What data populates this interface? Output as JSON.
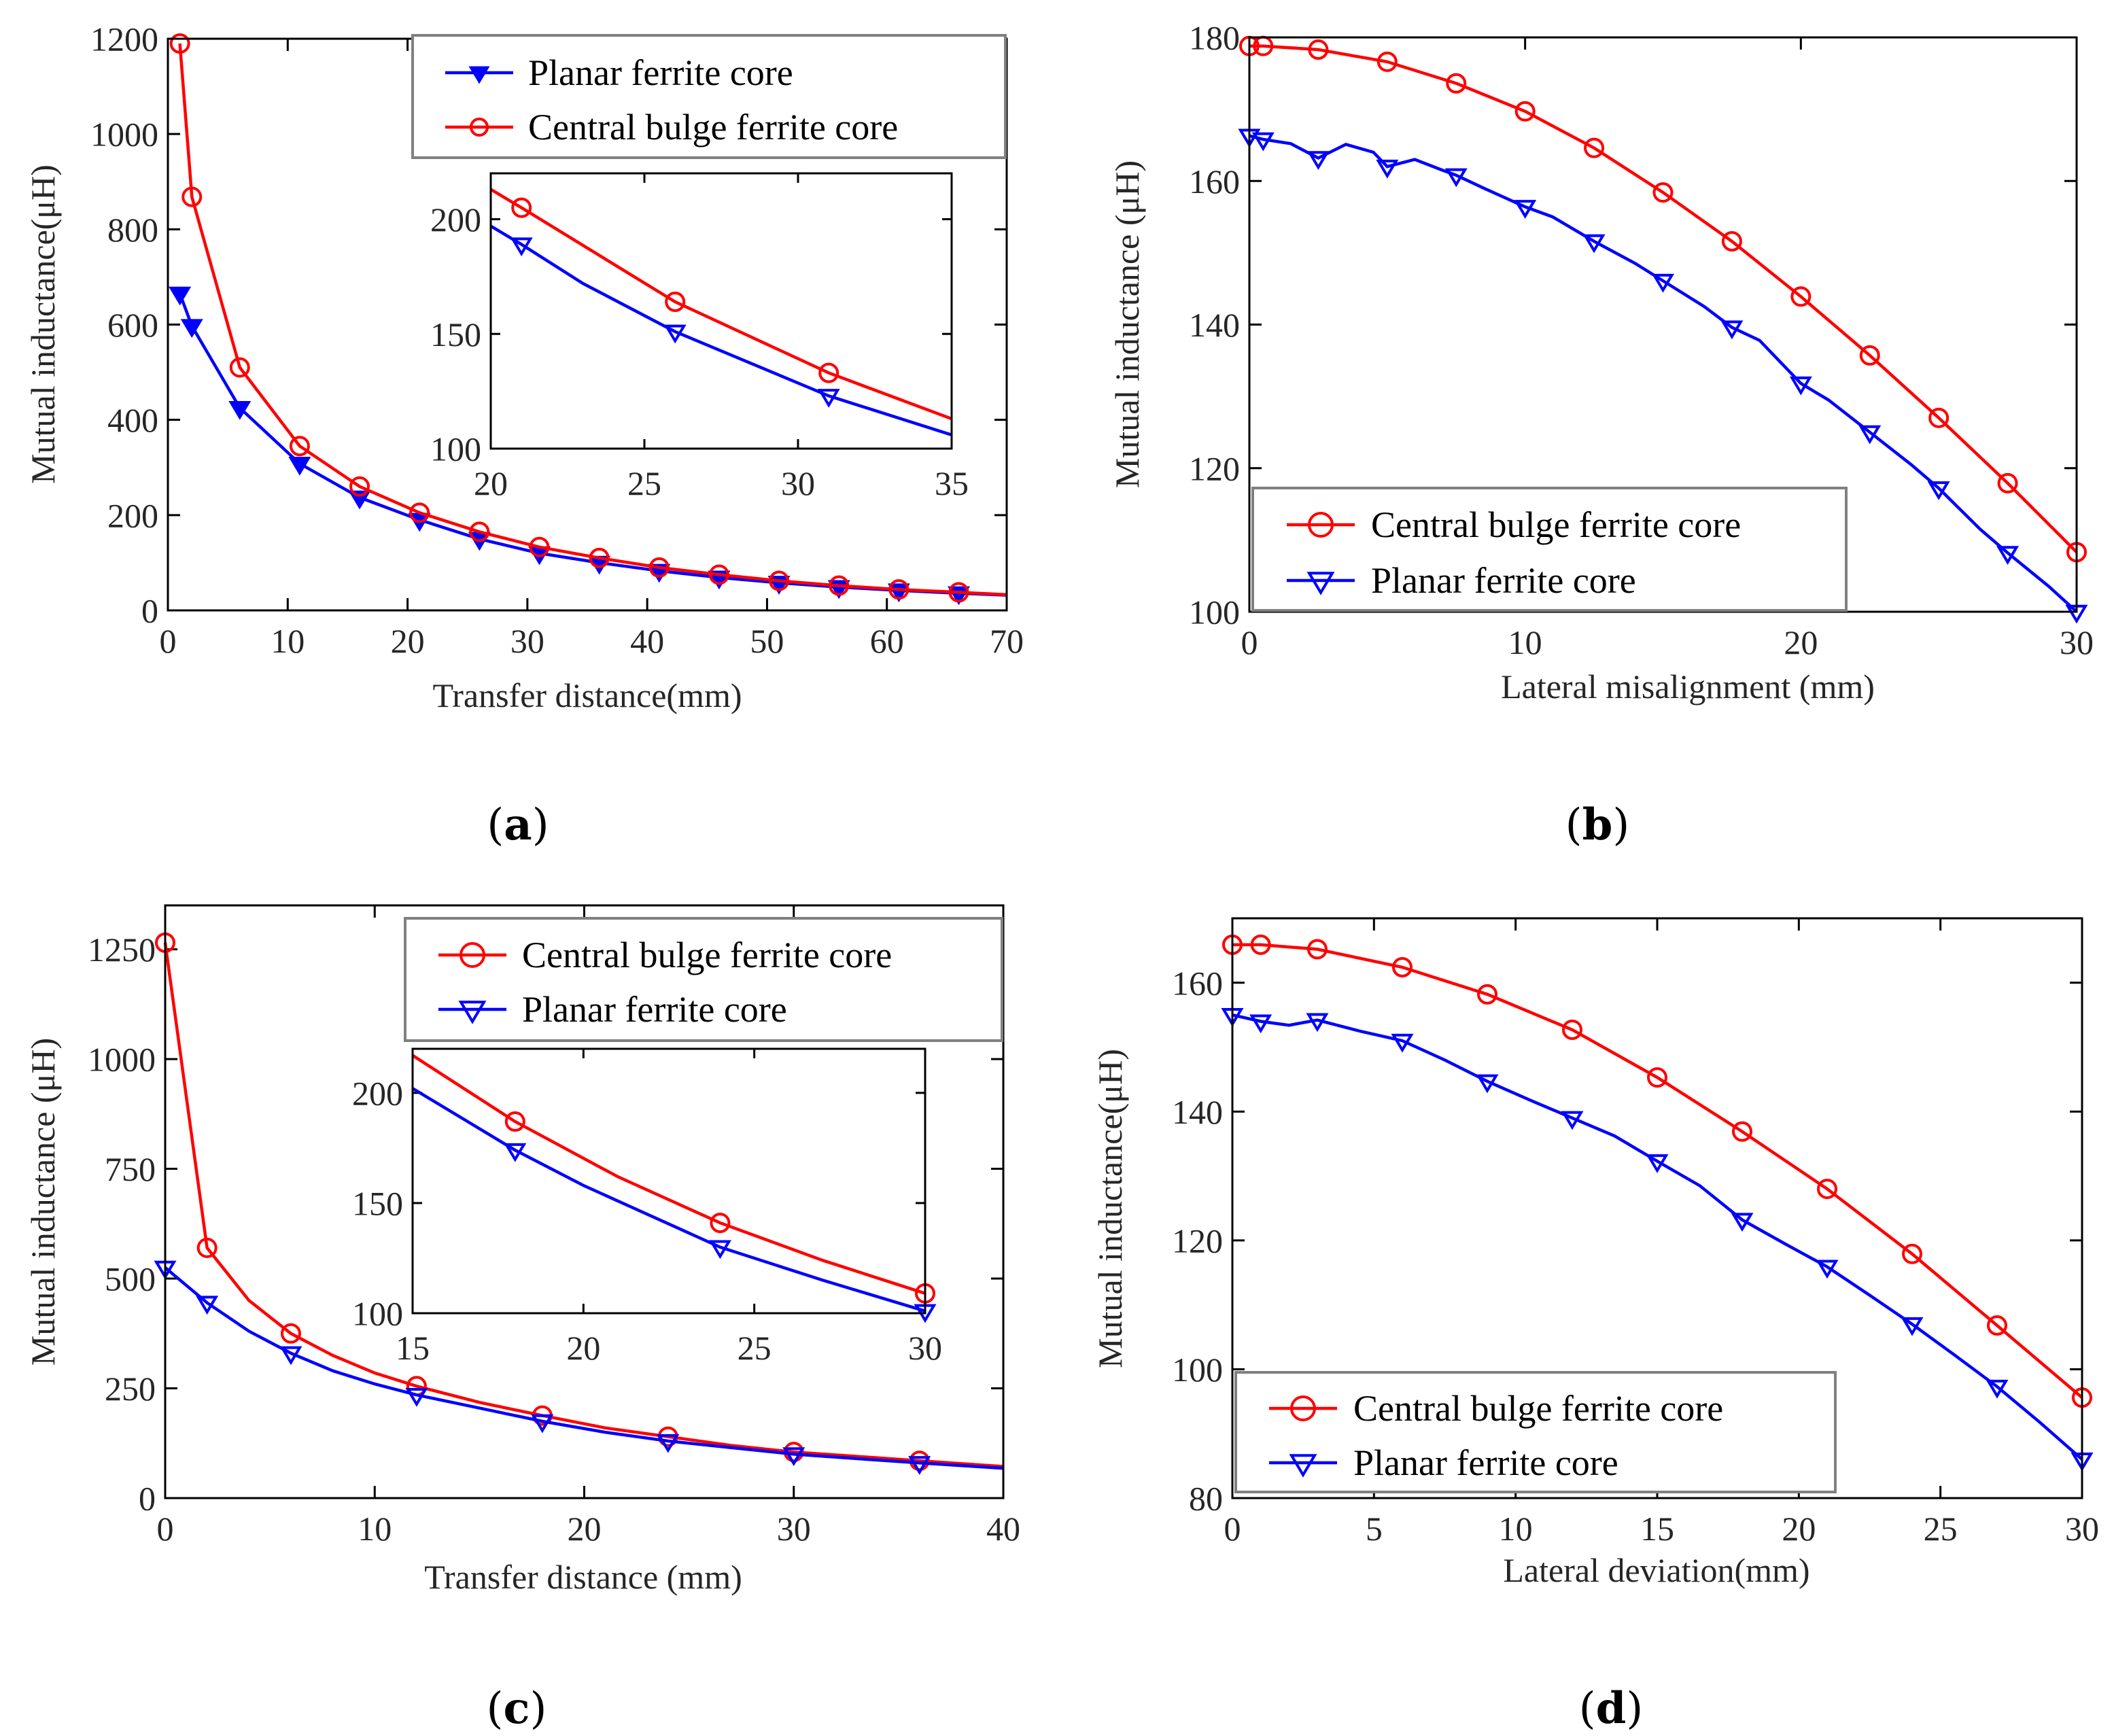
{
  "colors": {
    "red": "#ff0000",
    "blue": "#0000ff"
  },
  "chart_data": [
    {
      "id": "a",
      "type": "line",
      "caption_letter": "a",
      "xlabel": "Transfer distance(mm)",
      "ylabel": "Mutual inductance(μH)",
      "xlim": [
        0,
        70
      ],
      "ylim": [
        0,
        1200
      ],
      "xticks": [
        0,
        10,
        20,
        30,
        40,
        50,
        60,
        70
      ],
      "yticks": [
        0,
        200,
        400,
        600,
        800,
        1000,
        1200
      ],
      "legend_position": "top-right",
      "legend": [
        "Planar ferrite core",
        "Central bulge ferrite core"
      ],
      "series": [
        {
          "name": "Planar ferrite core",
          "color": "blue",
          "marker": "triangle-down-filled",
          "x": [
            1,
            2,
            6,
            11,
            16,
            21,
            26,
            31,
            36,
            41,
            46,
            51,
            56,
            61,
            66,
            70
          ],
          "y": [
            665,
            597,
            425,
            308,
            237,
            190,
            150,
            120,
            100,
            83,
            69,
            58,
            49,
            42,
            36,
            32
          ],
          "marker_x": [
            1,
            2,
            6,
            11,
            16,
            21,
            26,
            31,
            36,
            41,
            46,
            51,
            56,
            61,
            66
          ]
        },
        {
          "name": "Central bulge ferrite core",
          "color": "red",
          "marker": "circle",
          "x": [
            1,
            2,
            6,
            11,
            16,
            21,
            26,
            31,
            36,
            41,
            46,
            51,
            56,
            61,
            66,
            70
          ],
          "y": [
            1190,
            868,
            510,
            345,
            260,
            205,
            165,
            133,
            110,
            90,
            75,
            62,
            52,
            44,
            38,
            33
          ],
          "marker_x": [
            1,
            2,
            6,
            11,
            16,
            21,
            26,
            31,
            36,
            41,
            46,
            51,
            56,
            61,
            66
          ]
        }
      ],
      "inset": {
        "xlim": [
          20,
          35
        ],
        "ylim": [
          100,
          220
        ],
        "xticks": [
          20,
          25,
          30,
          35
        ],
        "yticks": [
          100,
          150,
          200
        ],
        "series": [
          {
            "name": "Central bulge ferrite core",
            "color": "red",
            "marker": "circle",
            "x": [
              20,
              21,
              26,
              31,
              35
            ],
            "y": [
              213,
              205,
              164,
              133,
              113
            ],
            "marker_x": [
              21,
              26,
              31
            ]
          },
          {
            "name": "Planar ferrite core",
            "color": "blue",
            "marker": "triangle-down",
            "x": [
              20,
              21,
              23,
              26,
              31,
              35
            ],
            "y": [
              197,
              189,
              172,
              151,
              123,
              106
            ],
            "marker_x": [
              21,
              26,
              31
            ]
          }
        ]
      }
    },
    {
      "id": "b",
      "type": "line",
      "caption_letter": "b",
      "xlabel": "Lateral misalignment (mm)",
      "ylabel": "Mutual inductance (μH)",
      "xlim": [
        0,
        30
      ],
      "ylim": [
        100,
        180
      ],
      "xticks": [
        0,
        10,
        20,
        30
      ],
      "yticks": [
        100,
        120,
        140,
        160,
        180
      ],
      "legend_position": "bottom-left",
      "legend": [
        "Central bulge ferrite core",
        "Planar ferrite core"
      ],
      "series": [
        {
          "name": "Central bulge ferrite core",
          "color": "red",
          "marker": "circle",
          "x": [
            0,
            0.5,
            2.5,
            5,
            7.5,
            10,
            12.5,
            15,
            17.5,
            20,
            22.5,
            25,
            27.5,
            30
          ],
          "y": [
            178.8,
            178.8,
            178.3,
            176.6,
            173.6,
            169.7,
            164.6,
            158.4,
            151.6,
            143.9,
            135.7,
            127.0,
            117.9,
            108.3
          ],
          "marker_x": [
            0,
            0.5,
            2.5,
            5,
            7.5,
            10,
            12.5,
            15,
            17.5,
            20,
            22.5,
            25,
            27.5,
            30
          ]
        },
        {
          "name": "Planar ferrite core",
          "color": "blue",
          "marker": "triangle-down",
          "x": [
            0,
            0.5,
            1.5,
            2.5,
            3.5,
            4.5,
            5,
            6,
            7,
            7.5,
            8.5,
            10,
            11,
            12.5,
            14,
            15,
            16.5,
            17.5,
            18.5,
            20,
            21,
            22.5,
            24,
            25,
            26.5,
            27.5,
            29,
            30
          ],
          "y": [
            166.3,
            165.8,
            165.2,
            163.2,
            165.1,
            164.0,
            162.0,
            163.0,
            161.5,
            160.8,
            159.0,
            156.4,
            155.0,
            151.6,
            148.5,
            146.1,
            142.5,
            139.6,
            137.8,
            131.8,
            129.5,
            125.0,
            120.5,
            117.2,
            111.5,
            108.2,
            103.5,
            100.0
          ],
          "marker_x": [
            0,
            0.5,
            2.5,
            5,
            7.5,
            10,
            12.5,
            15,
            17.5,
            20,
            22.5,
            25,
            27.5,
            30
          ]
        }
      ]
    },
    {
      "id": "c",
      "type": "line",
      "caption_letter": "c",
      "xlabel": "Transfer distance (mm)",
      "ylabel": "Mutual inductance (μH)",
      "xlim": [
        0,
        40
      ],
      "ylim": [
        0,
        1350
      ],
      "xticks": [
        0,
        10,
        20,
        30,
        40
      ],
      "yticks": [
        0,
        250,
        500,
        750,
        1000,
        1250
      ],
      "legend_position": "top-right",
      "legend": [
        "Central bulge ferrite core",
        "Planar ferrite core"
      ],
      "series": [
        {
          "name": "Central bulge ferrite core",
          "color": "red",
          "marker": "circle",
          "x": [
            0,
            2,
            4,
            6,
            8,
            10,
            12,
            15,
            18,
            21,
            24,
            27,
            30,
            33,
            36,
            40
          ],
          "y": [
            1265,
            570,
            450,
            375,
            325,
            285,
            255,
            218,
            188,
            160,
            140,
            120,
            105,
            95,
            85,
            72
          ],
          "marker_x": [
            0,
            2,
            6,
            12,
            18,
            24,
            30,
            36
          ]
        },
        {
          "name": "Planar ferrite core",
          "color": "blue",
          "marker": "triangle-down",
          "x": [
            0,
            2,
            4,
            6,
            8,
            10,
            12,
            15,
            18,
            21,
            24,
            27,
            30,
            33,
            36,
            40
          ],
          "y": [
            525,
            445,
            380,
            330,
            290,
            260,
            235,
            205,
            175,
            150,
            130,
            115,
            100,
            90,
            80,
            68
          ],
          "marker_x": [
            0,
            2,
            6,
            12,
            18,
            24,
            30,
            36
          ]
        }
      ],
      "inset": {
        "xlim": [
          15,
          30
        ],
        "ylim": [
          100,
          220
        ],
        "xticks": [
          15,
          20,
          25,
          30
        ],
        "yticks": [
          100,
          150,
          200
        ],
        "series": [
          {
            "name": "Central bulge ferrite core",
            "color": "red",
            "marker": "circle",
            "x": [
              15,
              18,
              21,
              24,
              27,
              30
            ],
            "y": [
              217,
              187,
              162,
              141,
              124,
              109
            ],
            "marker_x": [
              18,
              24,
              30
            ]
          },
          {
            "name": "Planar ferrite core",
            "color": "blue",
            "marker": "triangle-down",
            "x": [
              15,
              18,
              20,
              24,
              27,
              30
            ],
            "y": [
              202,
              174,
              158,
              130,
              115,
              101
            ],
            "marker_x": [
              18,
              24,
              30
            ]
          }
        ]
      }
    },
    {
      "id": "d",
      "type": "line",
      "caption_letter": "d",
      "xlabel": "Lateral deviation(mm)",
      "ylabel": "Mutual inductance(μH)",
      "xlim": [
        0,
        30
      ],
      "ylim": [
        80,
        170
      ],
      "xticks": [
        0,
        5,
        10,
        15,
        20,
        25,
        30
      ],
      "yticks": [
        80,
        100,
        120,
        140,
        160
      ],
      "legend_position": "bottom-left",
      "legend": [
        "Central bulge ferrite core",
        "Planar ferrite core"
      ],
      "series": [
        {
          "name": "Central bulge ferrite core",
          "color": "red",
          "marker": "circle",
          "x": [
            0,
            1,
            3,
            6,
            9,
            12,
            15,
            18,
            21,
            24,
            27,
            30
          ],
          "y": [
            165.9,
            165.9,
            165.2,
            162.4,
            158.2,
            152.7,
            145.3,
            136.9,
            128.0,
            117.9,
            106.8,
            95.6
          ],
          "marker_x": [
            0,
            1,
            3,
            6,
            9,
            12,
            15,
            18,
            21,
            24,
            27,
            30
          ]
        },
        {
          "name": "Planar ferrite core",
          "color": "blue",
          "marker": "triangle-down",
          "x": [
            0,
            1,
            2,
            3,
            4.5,
            6,
            7.5,
            9,
            10.5,
            12,
            13.5,
            15,
            16.5,
            18,
            19.5,
            21,
            22.5,
            24,
            25.5,
            27,
            28.5,
            30
          ],
          "y": [
            155.0,
            154.0,
            153.4,
            154.2,
            152.5,
            151.0,
            148.0,
            144.7,
            141.8,
            139.0,
            136.2,
            132.3,
            128.5,
            123.2,
            119.5,
            115.9,
            111.5,
            107.0,
            102.2,
            97.3,
            91.8,
            86.0
          ],
          "marker_x": [
            0,
            1,
            3,
            6,
            9,
            12,
            15,
            18,
            21,
            24,
            27,
            30
          ]
        }
      ]
    }
  ]
}
